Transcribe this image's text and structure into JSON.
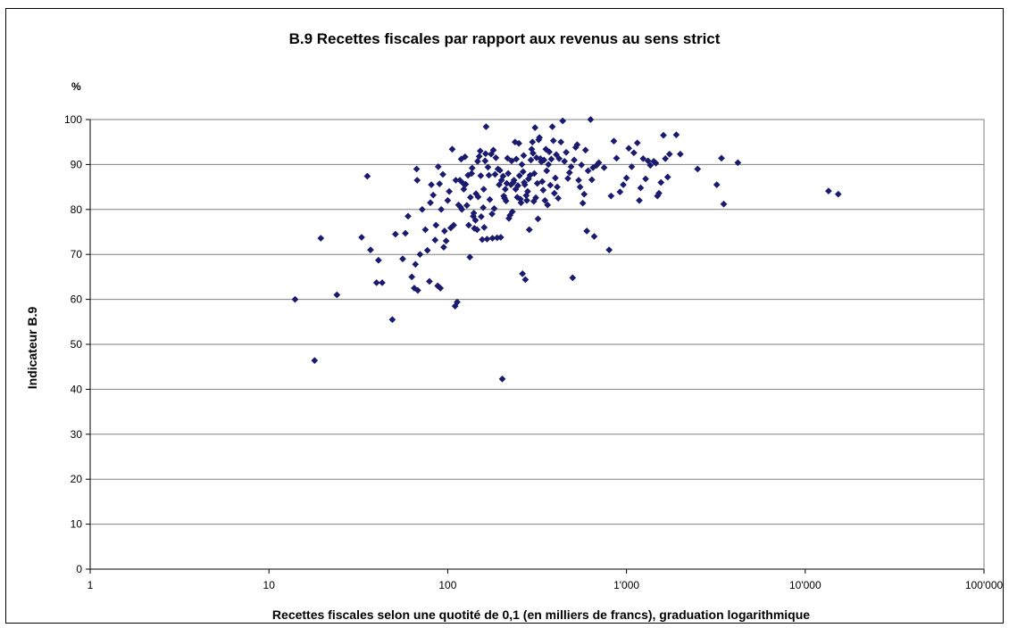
{
  "chart_data": {
    "type": "scatter",
    "title": "B.9 Recettes fiscales par rapport aux revenus au sens strict",
    "unit_label": "%",
    "xlabel": "Recettes fiscales selon une quotité de 0,1 (en milliers de francs), graduation logarithmique",
    "ylabel": "Indicateur B.9",
    "x_scale": "log",
    "xlim": [
      1,
      100000
    ],
    "ylim": [
      0,
      100
    ],
    "x_ticks": [
      1,
      10,
      100,
      1000,
      10000,
      100000
    ],
    "x_tick_labels": [
      "1",
      "10",
      "100",
      "1'000",
      "10'000",
      "100'000"
    ],
    "y_ticks": [
      0,
      10,
      20,
      30,
      40,
      50,
      60,
      70,
      80,
      90,
      100
    ],
    "y_tick_labels": [
      "0",
      "10",
      "20",
      "30",
      "40",
      "50",
      "60",
      "70",
      "80",
      "90",
      "100"
    ],
    "grid": "horizontal",
    "legend": "none",
    "colors": {
      "marker": "#1a1a6e",
      "grid": "#808080",
      "axis": "#000000"
    },
    "points": [
      [
        14,
        60
      ],
      [
        18,
        46.4
      ],
      [
        19.5,
        73.6
      ],
      [
        24,
        61
      ],
      [
        33,
        73.8
      ],
      [
        35.5,
        87.4
      ],
      [
        37,
        71
      ],
      [
        40,
        63.7
      ],
      [
        41,
        68.7
      ],
      [
        43,
        63.7
      ],
      [
        49,
        55.5
      ],
      [
        51,
        74.5
      ],
      [
        56,
        69
      ],
      [
        58,
        74.7
      ],
      [
        60,
        78.5
      ],
      [
        63,
        65
      ],
      [
        65,
        62.5
      ],
      [
        66,
        67.8
      ],
      [
        67,
        89
      ],
      [
        67.5,
        86.5
      ],
      [
        68,
        62
      ],
      [
        70,
        70
      ],
      [
        72,
        80
      ],
      [
        75,
        75.5
      ],
      [
        77,
        70.9
      ],
      [
        79,
        64
      ],
      [
        80,
        81.5
      ],
      [
        81,
        85.5
      ],
      [
        83,
        83.2
      ],
      [
        85,
        73.2
      ],
      [
        86,
        76.5
      ],
      [
        88,
        63
      ],
      [
        88.5,
        89.5
      ],
      [
        90,
        85.7
      ],
      [
        91,
        62.5
      ],
      [
        92,
        80
      ],
      [
        94,
        87.8
      ],
      [
        95,
        71.6
      ],
      [
        96,
        75.2
      ],
      [
        98,
        73
      ],
      [
        100,
        82
      ],
      [
        102,
        84
      ],
      [
        104,
        75.9
      ],
      [
        106,
        93.4
      ],
      [
        108,
        76.5
      ],
      [
        110,
        58.5
      ],
      [
        111,
        86.5
      ],
      [
        113,
        59.4
      ],
      [
        115,
        81
      ],
      [
        117,
        86.5
      ],
      [
        118,
        80.5
      ],
      [
        119,
        91.2
      ],
      [
        120,
        80
      ],
      [
        122,
        85.8
      ],
      [
        123,
        84.5
      ],
      [
        125,
        91.7
      ],
      [
        126,
        85.6
      ],
      [
        128,
        80.9
      ],
      [
        130,
        87.6
      ],
      [
        131,
        76.5
      ],
      [
        133,
        69.4
      ],
      [
        134,
        82.7
      ],
      [
        136,
        88
      ],
      [
        137,
        89.2
      ],
      [
        139,
        78.5
      ],
      [
        140,
        79.2
      ],
      [
        141,
        75.8
      ],
      [
        143,
        77.6
      ],
      [
        144,
        83.5
      ],
      [
        146,
        75.5
      ],
      [
        147,
        90.7
      ],
      [
        148,
        82.8
      ],
      [
        150,
        91.8
      ],
      [
        152,
        93
      ],
      [
        153,
        87.5
      ],
      [
        154,
        78.4
      ],
      [
        156,
        73.3
      ],
      [
        158,
        80.4
      ],
      [
        159,
        84.5
      ],
      [
        160,
        76
      ],
      [
        162,
        90.8
      ],
      [
        163,
        92.4
      ],
      [
        164,
        98.4
      ],
      [
        166,
        73.4
      ],
      [
        168,
        89.4
      ],
      [
        170,
        87.6
      ],
      [
        172,
        82.2
      ],
      [
        175,
        92.3
      ],
      [
        177,
        79
      ],
      [
        178,
        73.6
      ],
      [
        180,
        93.2
      ],
      [
        182,
        80.2
      ],
      [
        184,
        87.8
      ],
      [
        186,
        91.5
      ],
      [
        189,
        73.7
      ],
      [
        191,
        89
      ],
      [
        194,
        85.5
      ],
      [
        196,
        88.7
      ],
      [
        198,
        73.8
      ],
      [
        200,
        86.5
      ],
      [
        202,
        42.3
      ],
      [
        204,
        87.4
      ],
      [
        206,
        83
      ],
      [
        208,
        82.5
      ],
      [
        210,
        84.5
      ],
      [
        212,
        81.9
      ],
      [
        214,
        85.8
      ],
      [
        216,
        91.4
      ],
      [
        218,
        88
      ],
      [
        220,
        78
      ],
      [
        223,
        78.7
      ],
      [
        226,
        85.5
      ],
      [
        228,
        90.8
      ],
      [
        230,
        79.5
      ],
      [
        233,
        86
      ],
      [
        235,
        86.5
      ],
      [
        238,
        95
      ],
      [
        240,
        84.5
      ],
      [
        242,
        91.2
      ],
      [
        245,
        82.7
      ],
      [
        247,
        85.3
      ],
      [
        250,
        94.7
      ],
      [
        252,
        87.5
      ],
      [
        255,
        82.3
      ],
      [
        257,
        81.5
      ],
      [
        260,
        90
      ],
      [
        262,
        65.7
      ],
      [
        264,
        88.4
      ],
      [
        266,
        92
      ],
      [
        268,
        86
      ],
      [
        270,
        85.5
      ],
      [
        272,
        64.4
      ],
      [
        275,
        83.1
      ],
      [
        277,
        82
      ],
      [
        280,
        84
      ],
      [
        283,
        86.8
      ],
      [
        286,
        75.5
      ],
      [
        289,
        87.6
      ],
      [
        292,
        91
      ],
      [
        295,
        93.4
      ],
      [
        298,
        95
      ],
      [
        300,
        92.5
      ],
      [
        303,
        81.8
      ],
      [
        305,
        88
      ],
      [
        308,
        98.2
      ],
      [
        311,
        82.6
      ],
      [
        314,
        91.5
      ],
      [
        317,
        85.8
      ],
      [
        320,
        77.9
      ],
      [
        323,
        95.5
      ],
      [
        326,
        96
      ],
      [
        330,
        91.3
      ],
      [
        334,
        90.6
      ],
      [
        338,
        86.2
      ],
      [
        342,
        84.3
      ],
      [
        346,
        91
      ],
      [
        350,
        82
      ],
      [
        354,
        93.4
      ],
      [
        358,
        88.6
      ],
      [
        362,
        81
      ],
      [
        366,
        90
      ],
      [
        370,
        92.8
      ],
      [
        375,
        85.4
      ],
      [
        380,
        91.2
      ],
      [
        385,
        98.4
      ],
      [
        390,
        95.3
      ],
      [
        395,
        83.6
      ],
      [
        400,
        87
      ],
      [
        405,
        92.2
      ],
      [
        410,
        85
      ],
      [
        415,
        82.5
      ],
      [
        420,
        91.3
      ],
      [
        430,
        95
      ],
      [
        440,
        99.7
      ],
      [
        450,
        90.7
      ],
      [
        460,
        92.7
      ],
      [
        470,
        86.9
      ],
      [
        480,
        88.2
      ],
      [
        490,
        89.5
      ],
      [
        500,
        64.8
      ],
      [
        510,
        91
      ],
      [
        520,
        93.8
      ],
      [
        530,
        94.4
      ],
      [
        540,
        86.5
      ],
      [
        550,
        85
      ],
      [
        560,
        89.9
      ],
      [
        570,
        81.4
      ],
      [
        580,
        83.4
      ],
      [
        590,
        93.2
      ],
      [
        600,
        75.2
      ],
      [
        610,
        88.6
      ],
      [
        630,
        100
      ],
      [
        640,
        86.6
      ],
      [
        650,
        89.3
      ],
      [
        660,
        74
      ],
      [
        680,
        89.8
      ],
      [
        700,
        90.4
      ],
      [
        750,
        89.3
      ],
      [
        800,
        71
      ],
      [
        820,
        83
      ],
      [
        850,
        95.2
      ],
      [
        880,
        91.4
      ],
      [
        920,
        83.9
      ],
      [
        960,
        85.5
      ],
      [
        1000,
        87
      ],
      [
        1030,
        93.6
      ],
      [
        1070,
        89.5
      ],
      [
        1100,
        92.6
      ],
      [
        1150,
        94.8
      ],
      [
        1180,
        82
      ],
      [
        1200,
        84.8
      ],
      [
        1240,
        91.3
      ],
      [
        1280,
        86.8
      ],
      [
        1320,
        90.8
      ],
      [
        1360,
        89.8
      ],
      [
        1420,
        90.7
      ],
      [
        1460,
        90.3
      ],
      [
        1490,
        83
      ],
      [
        1520,
        83.6
      ],
      [
        1560,
        86
      ],
      [
        1610,
        96.5
      ],
      [
        1650,
        91.3
      ],
      [
        1700,
        87.2
      ],
      [
        1740,
        92.3
      ],
      [
        1900,
        96.6
      ],
      [
        2000,
        92.3
      ],
      [
        2500,
        89
      ],
      [
        3200,
        85.5
      ],
      [
        3400,
        91.4
      ],
      [
        3500,
        81.2
      ],
      [
        4200,
        90.4
      ],
      [
        13500,
        84.1
      ],
      [
        15300,
        83.4
      ]
    ]
  }
}
